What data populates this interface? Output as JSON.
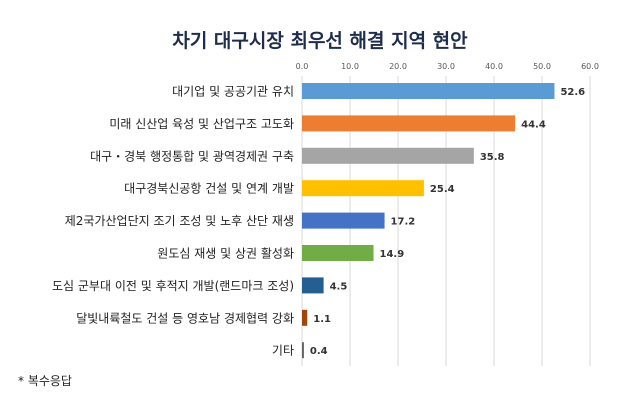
{
  "chart_data": {
    "type": "bar",
    "orientation": "horizontal",
    "title": "차기 대구시장 최우선 해결 지역 현안",
    "categories": [
      "대기업 및 공공기관 유치",
      "미래 신산업 육성 및 산업구조 고도화",
      "대구・경북 행정통합 및 광역경제권 구축",
      "대구경북신공항 건설 및 연계 개발",
      "제2국가산업단지 조기 조성 및 노후 산단 재생",
      "원도심 재생 및 상권 활성화",
      "도심 군부대 이전 및 후적지 개발(랜드마크 조성)",
      "달빛내륙철도 건설 등 영호남 경제협력 강화",
      "기타"
    ],
    "values": [
      52.6,
      44.4,
      35.8,
      25.4,
      17.2,
      14.9,
      4.5,
      1.1,
      0.4
    ],
    "value_labels": [
      "52.6",
      "44.4",
      "35.8",
      "25.4",
      "17.2",
      "14.9",
      "4.5",
      "1.1",
      "0.4"
    ],
    "colors": [
      "#5b9bd5",
      "#ed7d31",
      "#a5a5a5",
      "#ffc000",
      "#4472c4",
      "#70ad47",
      "#255e91",
      "#9e480e",
      "#636363"
    ],
    "xlim": [
      0,
      60
    ],
    "x_ticks": [
      "0.0",
      "10.0",
      "20.0",
      "30.0",
      "40.0",
      "50.0",
      "60.0"
    ],
    "x_axis_position": "top",
    "grid": true,
    "xlabel": "",
    "ylabel": ""
  },
  "footnote": "* 복수응답"
}
